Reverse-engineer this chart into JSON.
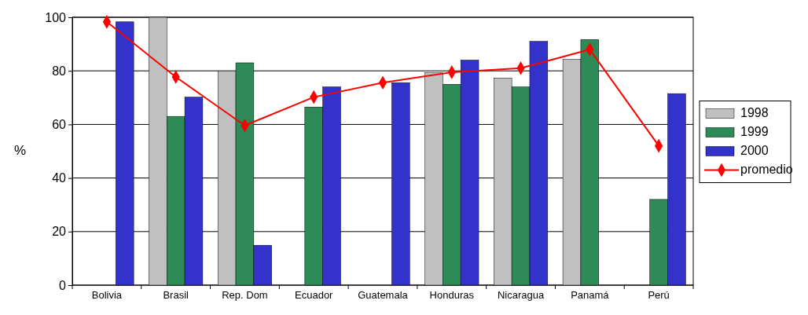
{
  "chart_data": {
    "type": "bar",
    "ylabel": "%",
    "categories": [
      "Bolivia",
      "Brasil",
      "Rep. Dom",
      "Ecuador",
      "Guatemala",
      "Honduras",
      "Nicaragua",
      "Panamá",
      "Perú"
    ],
    "series": [
      {
        "name": "1998",
        "color": "#c0c0c0",
        "values": [
          null,
          100,
          80,
          null,
          null,
          79.3,
          77.3,
          84.3,
          null
        ]
      },
      {
        "name": "1999",
        "color": "#2e8b57",
        "values": [
          null,
          63,
          83,
          66.5,
          null,
          75,
          74,
          91.7,
          32
        ]
      },
      {
        "name": "2000",
        "color": "#3333cc",
        "values": [
          98.3,
          70.2,
          14.9,
          74,
          75.6,
          84,
          91,
          null,
          71.5
        ]
      },
      {
        "name": "promedio",
        "type": "line",
        "color": "#ff0000",
        "marker": "diamond",
        "values": [
          98.3,
          77.7,
          59.6,
          70.2,
          75.6,
          79.5,
          81,
          88,
          52
        ]
      }
    ],
    "ylim": [
      0,
      100
    ],
    "yticks": [
      0,
      20,
      40,
      60,
      80,
      100
    ],
    "grid": "y",
    "legend": "right"
  }
}
